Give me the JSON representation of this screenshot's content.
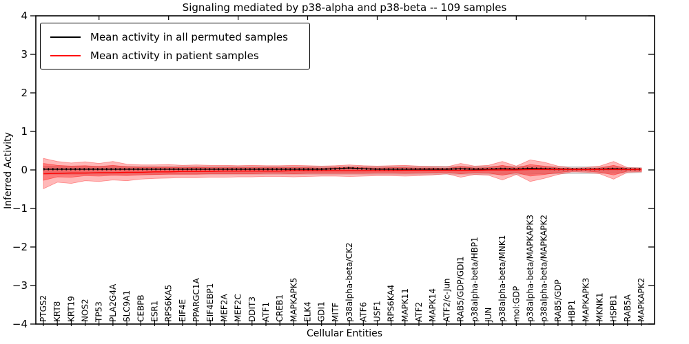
{
  "chart_data": {
    "type": "line",
    "title": "Signaling mediated by p38-alpha and p38-beta -- 109 samples",
    "xlabel": "Cellular Entities",
    "ylabel": "Inferred Activity",
    "ylim": [
      -4,
      4
    ],
    "ytick_labels": [
      "4",
      "3",
      "2",
      "1",
      "0",
      "−1",
      "−2",
      "−3",
      "−4"
    ],
    "grid": false,
    "legend_position": "upper left",
    "frame_color": "#000000",
    "categories": [
      "PTGS2",
      "KRT8",
      "KRT19",
      "NOS2",
      "TP53",
      "PLA2G4A",
      "SLC9A1",
      "CEBPB",
      "ESR1",
      "RPS6KA5",
      "EIF4E",
      "PPARGC1A",
      "EIF4EBP1",
      "MEF2A",
      "MEF2C",
      "DDIT3",
      "ATF1",
      "CREB1",
      "MAPKAPK5",
      "ELK4",
      "GDI1",
      "MITF",
      "p38alpha-beta/CK2",
      "ATF6",
      "USF1",
      "RPS6KA4",
      "MAPK11",
      "ATF2",
      "MAPK14",
      "ATF2/c-Jun",
      "RAB5/GDP/GDI1",
      "p38alpha-beta/HBP1",
      "JUN",
      "p38alpha-beta/MNK1",
      "mol:GDP",
      "p38alpha-beta/MAPKAPK3",
      "p38alpha-beta/MAPKAPK2",
      "RAB5/GDP",
      "HBP1",
      "MAPKAPK3",
      "MKNK1",
      "HSPB1",
      "RAB5A",
      "MAPKAPK2"
    ],
    "series": [
      {
        "name": "Mean activity in all permuted samples",
        "color": "#000000",
        "style": "solid-with-dot-texture",
        "values": [
          0.02,
          0.02,
          0.02,
          0.02,
          0.02,
          0.02,
          0.02,
          0.02,
          0.02,
          0.02,
          0.02,
          0.02,
          0.02,
          0.02,
          0.02,
          0.02,
          0.02,
          0.02,
          0.02,
          0.02,
          0.02,
          0.03,
          0.05,
          0.03,
          0.02,
          0.02,
          0.02,
          0.02,
          0.02,
          0.02,
          0.03,
          0.02,
          0.02,
          0.03,
          0.02,
          0.04,
          0.03,
          0.02,
          0.02,
          0.02,
          0.02,
          0.03,
          0.02,
          0.02
        ]
      },
      {
        "name": "Mean activity in patient samples",
        "color": "#ff0000",
        "style": "solid",
        "values": [
          -0.1,
          -0.09,
          -0.08,
          -0.08,
          -0.07,
          -0.07,
          -0.06,
          -0.06,
          -0.05,
          -0.05,
          -0.04,
          -0.04,
          -0.04,
          -0.03,
          -0.03,
          -0.03,
          -0.03,
          -0.03,
          -0.02,
          -0.02,
          -0.02,
          -0.02,
          -0.02,
          -0.02,
          -0.02,
          -0.02,
          -0.01,
          -0.01,
          -0.01,
          -0.01,
          -0.01,
          -0.01,
          0.0,
          0.0,
          0.0,
          0.01,
          0.01,
          0.01,
          0.01,
          0.01,
          0.01,
          0.01,
          0.01,
          0.02
        ]
      }
    ],
    "bands": [
      {
        "name": "permuted-sample-range",
        "color": "#999999",
        "opacity": 0.32,
        "upper": [
          0.1,
          0.1,
          0.1,
          0.1,
          0.1,
          0.1,
          0.1,
          0.1,
          0.1,
          0.1,
          0.1,
          0.1,
          0.1,
          0.1,
          0.1,
          0.1,
          0.1,
          0.1,
          0.1,
          0.1,
          0.1,
          0.1,
          0.1,
          0.1,
          0.1,
          0.1,
          0.1,
          0.1,
          0.1,
          0.1,
          0.1,
          0.1,
          0.1,
          0.1,
          0.1,
          0.1,
          0.09,
          0.09,
          0.09,
          0.09,
          0.08,
          0.08,
          0.07,
          0.06
        ],
        "lower": [
          -0.11,
          -0.11,
          -0.11,
          -0.11,
          -0.11,
          -0.11,
          -0.11,
          -0.11,
          -0.11,
          -0.11,
          -0.11,
          -0.11,
          -0.11,
          -0.11,
          -0.11,
          -0.11,
          -0.11,
          -0.11,
          -0.11,
          -0.11,
          -0.11,
          -0.11,
          -0.11,
          -0.11,
          -0.11,
          -0.11,
          -0.11,
          -0.11,
          -0.11,
          -0.11,
          -0.11,
          -0.11,
          -0.11,
          -0.11,
          -0.11,
          -0.11,
          -0.1,
          -0.1,
          -0.1,
          -0.1,
          -0.09,
          -0.09,
          -0.08,
          -0.07
        ]
      },
      {
        "name": "patient-sample-outer-band",
        "color": "#ff0000",
        "opacity": 0.28,
        "upper": [
          0.3,
          0.22,
          0.18,
          0.21,
          0.17,
          0.22,
          0.15,
          0.13,
          0.13,
          0.14,
          0.12,
          0.13,
          0.12,
          0.12,
          0.11,
          0.12,
          0.11,
          0.11,
          0.12,
          0.11,
          0.1,
          0.11,
          0.13,
          0.11,
          0.1,
          0.11,
          0.12,
          0.1,
          0.09,
          0.08,
          0.17,
          0.1,
          0.12,
          0.22,
          0.1,
          0.26,
          0.2,
          0.1,
          0.05,
          0.06,
          0.1,
          0.22,
          0.06,
          0.05
        ],
        "lower": [
          -0.49,
          -0.32,
          -0.35,
          -0.28,
          -0.3,
          -0.26,
          -0.28,
          -0.24,
          -0.22,
          -0.21,
          -0.2,
          -0.2,
          -0.19,
          -0.19,
          -0.18,
          -0.18,
          -0.17,
          -0.17,
          -0.18,
          -0.17,
          -0.16,
          -0.16,
          -0.17,
          -0.16,
          -0.15,
          -0.15,
          -0.16,
          -0.15,
          -0.13,
          -0.1,
          -0.19,
          -0.12,
          -0.14,
          -0.26,
          -0.12,
          -0.3,
          -0.22,
          -0.12,
          -0.05,
          -0.06,
          -0.1,
          -0.24,
          -0.06,
          -0.05
        ]
      },
      {
        "name": "patient-sample-inner-band",
        "color": "#ff0000",
        "opacity": 0.34,
        "upper": [
          0.17,
          0.12,
          0.1,
          0.11,
          0.09,
          0.12,
          0.08,
          0.07,
          0.07,
          0.07,
          0.06,
          0.07,
          0.06,
          0.06,
          0.06,
          0.06,
          0.06,
          0.06,
          0.06,
          0.06,
          0.05,
          0.06,
          0.07,
          0.06,
          0.05,
          0.06,
          0.06,
          0.05,
          0.05,
          0.04,
          0.09,
          0.05,
          0.06,
          0.12,
          0.05,
          0.14,
          0.1,
          0.05,
          0.03,
          0.03,
          0.05,
          0.12,
          0.03,
          0.03
        ],
        "lower": [
          -0.27,
          -0.18,
          -0.19,
          -0.15,
          -0.16,
          -0.14,
          -0.15,
          -0.13,
          -0.12,
          -0.11,
          -0.11,
          -0.11,
          -0.1,
          -0.1,
          -0.1,
          -0.1,
          -0.09,
          -0.09,
          -0.1,
          -0.09,
          -0.09,
          -0.09,
          -0.09,
          -0.09,
          -0.08,
          -0.08,
          -0.09,
          -0.08,
          -0.07,
          -0.06,
          -0.1,
          -0.07,
          -0.08,
          -0.14,
          -0.07,
          -0.16,
          -0.12,
          -0.07,
          -0.03,
          -0.03,
          -0.06,
          -0.13,
          -0.03,
          -0.03
        ]
      }
    ]
  }
}
